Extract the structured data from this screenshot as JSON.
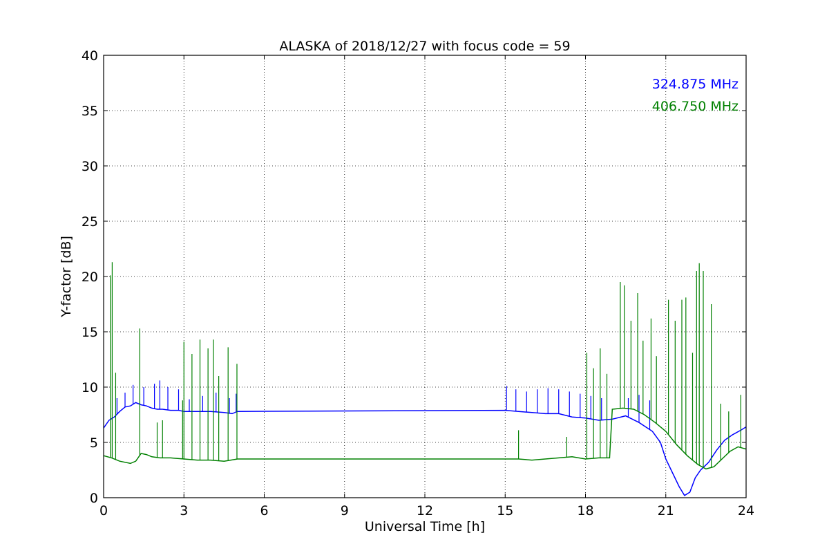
{
  "chart_data": {
    "type": "line",
    "title": "ALASKA of 2018/12/27 with focus code = 59",
    "xlabel": "Universal Time [h]",
    "ylabel": "Y-factor [dB]",
    "xlim": [
      0,
      24
    ],
    "ylim": [
      0,
      40
    ],
    "xticks": [
      0,
      3,
      6,
      9,
      12,
      15,
      18,
      21,
      24
    ],
    "yticks": [
      0,
      5,
      10,
      15,
      20,
      25,
      30,
      35,
      40
    ],
    "grid": true,
    "legend_position": "top-right",
    "series": [
      {
        "name": "324.875 MHz",
        "color": "#0000ff",
        "points": [
          [
            0.0,
            6.3
          ],
          [
            0.2,
            7.0
          ],
          [
            0.4,
            7.3
          ],
          [
            0.6,
            7.8
          ],
          [
            0.8,
            8.2
          ],
          [
            1.0,
            8.3
          ],
          [
            1.2,
            8.6
          ],
          [
            1.4,
            8.4
          ],
          [
            1.6,
            8.3
          ],
          [
            1.8,
            8.1
          ],
          [
            2.0,
            8.0
          ],
          [
            2.2,
            8.0
          ],
          [
            2.5,
            7.9
          ],
          [
            2.8,
            7.9
          ],
          [
            3.0,
            7.8
          ],
          [
            3.5,
            7.8
          ],
          [
            4.0,
            7.8
          ],
          [
            4.5,
            7.7
          ],
          [
            4.8,
            7.6
          ],
          [
            5.0,
            7.8
          ],
          [
            15.0,
            7.9
          ],
          [
            15.5,
            7.8
          ],
          [
            16.0,
            7.7
          ],
          [
            16.5,
            7.6
          ],
          [
            17.0,
            7.6
          ],
          [
            17.5,
            7.3
          ],
          [
            18.0,
            7.2
          ],
          [
            18.5,
            7.0
          ],
          [
            19.0,
            7.1
          ],
          [
            19.5,
            7.4
          ],
          [
            20.0,
            6.8
          ],
          [
            20.5,
            6.0
          ],
          [
            20.8,
            5.0
          ],
          [
            21.0,
            3.5
          ],
          [
            21.3,
            2.0
          ],
          [
            21.5,
            1.0
          ],
          [
            21.7,
            0.2
          ],
          [
            21.9,
            0.5
          ],
          [
            22.1,
            1.8
          ],
          [
            22.3,
            2.5
          ],
          [
            22.6,
            3.2
          ],
          [
            22.9,
            4.3
          ],
          [
            23.2,
            5.2
          ],
          [
            23.5,
            5.7
          ],
          [
            23.8,
            6.1
          ],
          [
            24.0,
            6.4
          ]
        ],
        "spikes": [
          [
            0.5,
            9.0
          ],
          [
            0.8,
            9.5
          ],
          [
            1.1,
            10.2
          ],
          [
            1.5,
            10.0
          ],
          [
            1.9,
            10.3
          ],
          [
            2.1,
            10.6
          ],
          [
            2.4,
            10.0
          ],
          [
            2.8,
            9.8
          ],
          [
            3.2,
            8.9
          ],
          [
            3.7,
            9.2
          ],
          [
            4.2,
            9.5
          ],
          [
            4.7,
            9.0
          ],
          [
            4.95,
            9.4
          ],
          [
            15.05,
            10.1
          ],
          [
            15.4,
            9.8
          ],
          [
            15.8,
            9.6
          ],
          [
            16.2,
            9.8
          ],
          [
            16.6,
            9.9
          ],
          [
            17.0,
            9.8
          ],
          [
            17.4,
            9.6
          ],
          [
            17.8,
            9.4
          ],
          [
            18.2,
            9.2
          ],
          [
            18.6,
            9.0
          ],
          [
            19.6,
            9.0
          ],
          [
            20.0,
            9.3
          ],
          [
            20.4,
            8.8
          ]
        ]
      },
      {
        "name": "406.750 MHz",
        "color": "#008000",
        "points": [
          [
            0.0,
            3.8
          ],
          [
            0.3,
            3.6
          ],
          [
            0.6,
            3.3
          ],
          [
            1.0,
            3.1
          ],
          [
            1.2,
            3.3
          ],
          [
            1.4,
            4.0
          ],
          [
            1.6,
            3.9
          ],
          [
            1.8,
            3.7
          ],
          [
            2.1,
            3.6
          ],
          [
            2.5,
            3.6
          ],
          [
            3.0,
            3.5
          ],
          [
            3.5,
            3.4
          ],
          [
            4.0,
            3.4
          ],
          [
            4.5,
            3.3
          ],
          [
            5.0,
            3.5
          ],
          [
            15.0,
            3.5
          ],
          [
            15.5,
            3.5
          ],
          [
            16.0,
            3.4
          ],
          [
            16.5,
            3.5
          ],
          [
            17.0,
            3.6
          ],
          [
            17.5,
            3.7
          ],
          [
            18.0,
            3.5
          ],
          [
            18.5,
            3.6
          ],
          [
            18.9,
            3.6
          ],
          [
            19.0,
            8.0
          ],
          [
            19.4,
            8.1
          ],
          [
            19.8,
            8.0
          ],
          [
            20.2,
            7.5
          ],
          [
            20.6,
            6.8
          ],
          [
            21.0,
            6.0
          ],
          [
            21.4,
            4.8
          ],
          [
            21.8,
            3.8
          ],
          [
            22.2,
            3.0
          ],
          [
            22.5,
            2.6
          ],
          [
            22.8,
            2.8
          ],
          [
            23.1,
            3.5
          ],
          [
            23.4,
            4.2
          ],
          [
            23.7,
            4.6
          ],
          [
            24.0,
            4.4
          ]
        ],
        "spikes": [
          [
            0.25,
            20.1
          ],
          [
            0.32,
            21.3
          ],
          [
            0.45,
            11.3
          ],
          [
            1.35,
            15.3
          ],
          [
            2.0,
            6.8
          ],
          [
            2.2,
            7.0
          ],
          [
            2.95,
            8.8
          ],
          [
            3.0,
            14.1
          ],
          [
            3.3,
            13.0
          ],
          [
            3.6,
            14.3
          ],
          [
            3.9,
            13.5
          ],
          [
            4.1,
            14.3
          ],
          [
            4.3,
            11.0
          ],
          [
            4.65,
            13.6
          ],
          [
            4.98,
            12.1
          ],
          [
            15.5,
            6.1
          ],
          [
            17.3,
            5.5
          ],
          [
            18.05,
            13.1
          ],
          [
            18.3,
            11.7
          ],
          [
            18.55,
            13.5
          ],
          [
            18.8,
            11.2
          ],
          [
            19.3,
            19.5
          ],
          [
            19.45,
            19.2
          ],
          [
            19.7,
            16.0
          ],
          [
            19.95,
            18.5
          ],
          [
            20.15,
            14.2
          ],
          [
            20.45,
            16.2
          ],
          [
            20.65,
            12.8
          ],
          [
            21.1,
            17.9
          ],
          [
            21.35,
            16.0
          ],
          [
            21.6,
            17.9
          ],
          [
            21.75,
            18.1
          ],
          [
            22.0,
            13.1
          ],
          [
            22.15,
            20.5
          ],
          [
            22.25,
            21.2
          ],
          [
            22.4,
            20.5
          ],
          [
            22.7,
            17.5
          ],
          [
            23.05,
            8.5
          ],
          [
            23.35,
            7.8
          ],
          [
            23.8,
            9.3
          ]
        ]
      }
    ]
  }
}
